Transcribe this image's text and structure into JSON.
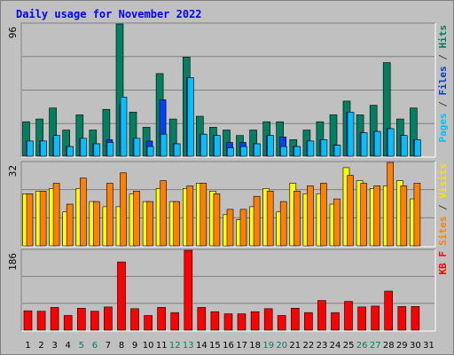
{
  "chart_data": {
    "type": "bar",
    "title": "Daily usage for November 2022",
    "categories": [
      "1",
      "2",
      "3",
      "4",
      "5",
      "6",
      "7",
      "8",
      "9",
      "10",
      "11",
      "12",
      "13",
      "14",
      "15",
      "16",
      "17",
      "18",
      "19",
      "20",
      "21",
      "22",
      "23",
      "24",
      "25",
      "26",
      "27",
      "28",
      "29",
      "30",
      "31"
    ],
    "weekend_categories": [
      "5",
      "6",
      "12",
      "13",
      "19",
      "20",
      "26",
      "27"
    ],
    "panels": [
      {
        "name": "top",
        "ymax_label": "96",
        "ylim": [
          0,
          96
        ],
        "right_labels": [
          {
            "text": "Hits",
            "color": "#008060"
          },
          {
            "text": " / ",
            "color": "#404040"
          },
          {
            "text": "Files",
            "color": "#0040c0"
          },
          {
            "text": " / ",
            "color": "#404040"
          },
          {
            "text": "Pages",
            "color": "#00c0ff"
          }
        ],
        "series": [
          {
            "name": "Hits",
            "color": "#008060",
            "values": [
              25,
              27,
              35,
              19,
              30,
              19,
              34,
              96,
              32,
              21,
              60,
              27,
              72,
              29,
              21,
              19,
              15,
              19,
              25,
              25,
              12,
              19,
              25,
              30,
              40,
              30,
              37,
              68,
              27,
              35,
              0
            ]
          },
          {
            "name": "Files",
            "color": "#0040ff",
            "values": [
              11,
              11,
              14,
              7,
              13,
              9,
              12,
              38,
              13,
              11,
              41,
              9,
              57,
              16,
              15,
              10,
              10,
              9,
              15,
              14,
              7,
              11,
              12,
              8,
              32,
              17,
              18,
              20,
              15,
              12,
              0
            ]
          },
          {
            "name": "Pages",
            "color": "#00c0ff",
            "values": [
              11,
              11,
              15,
              7,
              13,
              9,
              10,
              43,
              13,
              7,
              16,
              9,
              57,
              16,
              15,
              6,
              7,
              9,
              15,
              7,
              7,
              11,
              12,
              8,
              32,
              17,
              18,
              20,
              15,
              12,
              0
            ]
          }
        ]
      },
      {
        "name": "middle",
        "ymax_label": "32",
        "ylim": [
          0,
          32
        ],
        "right_labels": [
          {
            "text": "Visits",
            "color": "#ffe000"
          },
          {
            "text": " / ",
            "color": "#404040"
          },
          {
            "text": "Sites",
            "color": "#ff8000"
          }
        ],
        "series": [
          {
            "name": "Visits",
            "color": "#ffff00",
            "values": [
              20,
              21,
              22,
              13,
              22,
              17,
              15,
              15,
              20,
              17,
              22,
              17,
              22,
              24,
              21,
              12,
              10,
              15,
              22,
              13,
              24,
              20,
              20,
              16,
              30,
              25,
              22,
              23,
              25,
              18,
              0
            ]
          },
          {
            "name": "Sites",
            "color": "#ff8000",
            "values": [
              20,
              21,
              24,
              16,
              26,
              17,
              24,
              28,
              21,
              17,
              25,
              17,
              23,
              24,
              20,
              14,
              14,
              19,
              21,
              17,
              21,
              23,
              24,
              18,
              27,
              24,
              23,
              32,
              23,
              24,
              0
            ]
          }
        ]
      },
      {
        "name": "bottom",
        "ymax_label": "186",
        "ylim": [
          0,
          186
        ],
        "right_labels": [
          {
            "text": "KB F",
            "color": "#ff0000"
          }
        ],
        "series": [
          {
            "name": "KB F",
            "color": "#ff0000",
            "values": [
              45,
              44,
              53,
              34,
              51,
              44,
              54,
              159,
              50,
              34,
              53,
              41,
              186,
              53,
              43,
              38,
              38,
              43,
              50,
              34,
              51,
              41,
              69,
              41,
              67,
              54,
              56,
              91,
              55,
              55,
              0
            ]
          }
        ]
      }
    ]
  }
}
